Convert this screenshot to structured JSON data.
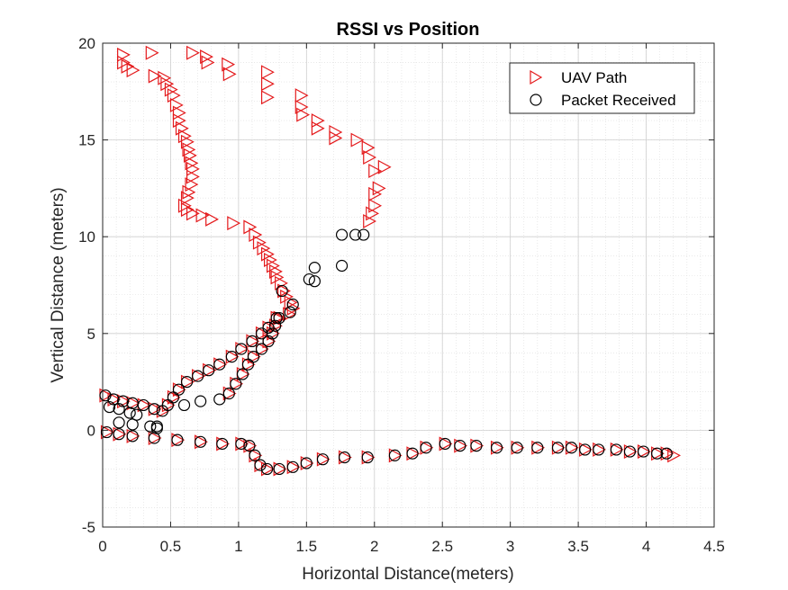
{
  "chart_data": {
    "type": "scatter",
    "title": "RSSI vs Position",
    "xlabel": "Horizontal Distance(meters)",
    "ylabel": "Vertical Distance (meters)",
    "xlim": [
      0,
      4.5
    ],
    "ylim": [
      -5,
      20
    ],
    "xticks": [
      0,
      0.5,
      1,
      1.5,
      2,
      2.5,
      3,
      3.5,
      4,
      4.5
    ],
    "xtick_labels": [
      "0",
      "0.5",
      "1",
      "1.5",
      "2",
      "2.5",
      "3",
      "3.5",
      "4",
      "4.5"
    ],
    "yticks": [
      -5,
      0,
      5,
      10,
      15,
      20
    ],
    "ytick_labels": [
      "-5",
      "0",
      "5",
      "10",
      "15",
      "20"
    ],
    "grid": true,
    "minor_grid": true,
    "legend_position": "top-right",
    "series": [
      {
        "name": "UAV Path",
        "marker": "triangle-right",
        "color": "#e41a1c",
        "points": [
          [
            0.15,
            19.4
          ],
          [
            0.15,
            19.0
          ],
          [
            0.18,
            18.8
          ],
          [
            0.22,
            18.6
          ],
          [
            0.36,
            19.5
          ],
          [
            0.66,
            19.5
          ],
          [
            0.76,
            19.3
          ],
          [
            0.77,
            19.0
          ],
          [
            0.92,
            18.9
          ],
          [
            0.93,
            18.4
          ],
          [
            0.38,
            18.3
          ],
          [
            0.45,
            18.2
          ],
          [
            0.47,
            17.9
          ],
          [
            0.5,
            17.6
          ],
          [
            0.52,
            17.3
          ],
          [
            0.54,
            16.8
          ],
          [
            0.56,
            16.4
          ],
          [
            0.56,
            16.0
          ],
          [
            0.58,
            15.6
          ],
          [
            0.6,
            15.2
          ],
          [
            0.62,
            14.9
          ],
          [
            0.63,
            14.5
          ],
          [
            0.64,
            14.2
          ],
          [
            0.65,
            13.8
          ],
          [
            0.66,
            13.5
          ],
          [
            0.66,
            13.1
          ],
          [
            0.65,
            12.7
          ],
          [
            0.63,
            12.3
          ],
          [
            0.62,
            12.0
          ],
          [
            0.6,
            11.6
          ],
          [
            0.62,
            11.4
          ],
          [
            0.66,
            11.2
          ],
          [
            0.73,
            11.1
          ],
          [
            0.8,
            10.9
          ],
          [
            0.96,
            10.7
          ],
          [
            1.08,
            10.5
          ],
          [
            1.12,
            10.1
          ],
          [
            1.15,
            9.7
          ],
          [
            1.18,
            9.4
          ],
          [
            1.21,
            9.1
          ],
          [
            1.23,
            8.8
          ],
          [
            1.25,
            8.5
          ],
          [
            1.27,
            8.2
          ],
          [
            1.28,
            7.9
          ],
          [
            1.31,
            7.6
          ],
          [
            1.33,
            7.2
          ],
          [
            1.35,
            6.9
          ],
          [
            1.38,
            6.6
          ],
          [
            1.4,
            6.3
          ],
          [
            1.37,
            6.0
          ],
          [
            1.3,
            5.8
          ],
          [
            1.27,
            5.4
          ],
          [
            1.25,
            5.0
          ],
          [
            1.22,
            4.6
          ],
          [
            1.17,
            4.2
          ],
          [
            1.11,
            3.8
          ],
          [
            1.07,
            3.4
          ],
          [
            1.03,
            2.9
          ],
          [
            0.98,
            2.4
          ],
          [
            0.93,
            1.9
          ],
          [
            1.21,
            18.5
          ],
          [
            1.21,
            17.9
          ],
          [
            1.21,
            17.2
          ],
          [
            1.46,
            17.3
          ],
          [
            1.46,
            16.7
          ],
          [
            1.47,
            16.3
          ],
          [
            1.58,
            16.0
          ],
          [
            1.58,
            15.6
          ],
          [
            1.71,
            15.4
          ],
          [
            1.71,
            15.1
          ],
          [
            1.87,
            15.0
          ],
          [
            1.95,
            14.6
          ],
          [
            1.96,
            14.1
          ],
          [
            2.07,
            13.6
          ],
          [
            2.0,
            13.4
          ],
          [
            2.03,
            12.5
          ],
          [
            2.0,
            12.2
          ],
          [
            2.0,
            11.6
          ],
          [
            1.98,
            11.2
          ],
          [
            1.96,
            10.8
          ],
          [
            0.02,
            1.8
          ],
          [
            0.08,
            1.6
          ],
          [
            0.15,
            1.5
          ],
          [
            0.22,
            1.4
          ],
          [
            0.3,
            1.3
          ],
          [
            0.38,
            1.1
          ],
          [
            0.44,
            1.0
          ],
          [
            0.48,
            1.3
          ],
          [
            0.52,
            1.7
          ],
          [
            0.56,
            2.1
          ],
          [
            0.62,
            2.5
          ],
          [
            0.7,
            2.8
          ],
          [
            0.78,
            3.1
          ],
          [
            0.86,
            3.4
          ],
          [
            0.95,
            3.8
          ],
          [
            1.02,
            4.2
          ],
          [
            1.1,
            4.6
          ],
          [
            1.17,
            5.0
          ],
          [
            1.22,
            5.3
          ],
          [
            1.28,
            5.8
          ],
          [
            0.03,
            -0.1
          ],
          [
            0.12,
            -0.2
          ],
          [
            0.22,
            -0.3
          ],
          [
            0.38,
            -0.4
          ],
          [
            0.55,
            -0.5
          ],
          [
            0.72,
            -0.6
          ],
          [
            0.88,
            -0.7
          ],
          [
            1.02,
            -0.7
          ],
          [
            1.08,
            -0.8
          ],
          [
            1.12,
            -1.3
          ],
          [
            1.16,
            -1.8
          ],
          [
            1.21,
            -2.0
          ],
          [
            1.3,
            -2.0
          ],
          [
            1.4,
            -1.9
          ],
          [
            1.5,
            -1.7
          ],
          [
            1.62,
            -1.5
          ],
          [
            1.78,
            -1.4
          ],
          [
            1.95,
            -1.4
          ],
          [
            2.15,
            -1.3
          ],
          [
            2.28,
            -1.2
          ],
          [
            2.38,
            -0.9
          ],
          [
            2.52,
            -0.7
          ],
          [
            2.63,
            -0.8
          ],
          [
            2.75,
            -0.8
          ],
          [
            2.9,
            -0.9
          ],
          [
            3.05,
            -0.9
          ],
          [
            3.2,
            -0.9
          ],
          [
            3.35,
            -0.9
          ],
          [
            3.45,
            -0.9
          ],
          [
            3.55,
            -1.0
          ],
          [
            3.65,
            -1.0
          ],
          [
            3.78,
            -1.0
          ],
          [
            3.88,
            -1.1
          ],
          [
            3.98,
            -1.1
          ],
          [
            4.08,
            -1.2
          ],
          [
            4.15,
            -1.2
          ],
          [
            4.2,
            -1.3
          ]
        ]
      },
      {
        "name": "Packet Received",
        "marker": "circle",
        "color": "#000000",
        "points": [
          [
            1.76,
            10.1
          ],
          [
            1.86,
            10.1
          ],
          [
            1.92,
            10.1
          ],
          [
            1.76,
            8.5
          ],
          [
            1.56,
            8.4
          ],
          [
            1.52,
            7.8
          ],
          [
            1.56,
            7.7
          ],
          [
            1.4,
            6.5
          ],
          [
            1.38,
            6.1
          ],
          [
            1.32,
            7.2
          ],
          [
            1.3,
            5.8
          ],
          [
            1.27,
            5.4
          ],
          [
            1.25,
            5.0
          ],
          [
            1.22,
            4.6
          ],
          [
            1.17,
            4.2
          ],
          [
            1.11,
            3.8
          ],
          [
            1.07,
            3.4
          ],
          [
            1.03,
            2.9
          ],
          [
            0.98,
            2.4
          ],
          [
            0.93,
            1.9
          ],
          [
            0.86,
            1.6
          ],
          [
            0.72,
            1.5
          ],
          [
            0.6,
            1.3
          ],
          [
            0.02,
            1.8
          ],
          [
            0.08,
            1.6
          ],
          [
            0.15,
            1.5
          ],
          [
            0.22,
            1.4
          ],
          [
            0.3,
            1.3
          ],
          [
            0.38,
            1.1
          ],
          [
            0.44,
            1.0
          ],
          [
            0.48,
            1.3
          ],
          [
            0.52,
            1.7
          ],
          [
            0.56,
            2.1
          ],
          [
            0.62,
            2.5
          ],
          [
            0.7,
            2.8
          ],
          [
            0.78,
            3.1
          ],
          [
            0.86,
            3.4
          ],
          [
            0.95,
            3.8
          ],
          [
            1.02,
            4.2
          ],
          [
            1.1,
            4.6
          ],
          [
            1.17,
            5.0
          ],
          [
            1.22,
            5.3
          ],
          [
            1.28,
            5.8
          ],
          [
            0.05,
            1.2
          ],
          [
            0.12,
            1.1
          ],
          [
            0.2,
            0.9
          ],
          [
            0.25,
            0.8
          ],
          [
            0.12,
            0.4
          ],
          [
            0.22,
            0.3
          ],
          [
            0.35,
            0.2
          ],
          [
            0.4,
            0.1
          ],
          [
            0.4,
            0.2
          ],
          [
            0.03,
            -0.1
          ],
          [
            0.12,
            -0.2
          ],
          [
            0.22,
            -0.3
          ],
          [
            0.38,
            -0.4
          ],
          [
            0.55,
            -0.5
          ],
          [
            0.72,
            -0.6
          ],
          [
            0.88,
            -0.7
          ],
          [
            1.02,
            -0.7
          ],
          [
            1.08,
            -0.8
          ],
          [
            1.12,
            -1.3
          ],
          [
            1.16,
            -1.8
          ],
          [
            1.21,
            -2.0
          ],
          [
            1.3,
            -2.0
          ],
          [
            1.4,
            -1.9
          ],
          [
            1.5,
            -1.7
          ],
          [
            1.62,
            -1.5
          ],
          [
            1.78,
            -1.4
          ],
          [
            1.95,
            -1.4
          ],
          [
            2.15,
            -1.3
          ],
          [
            2.28,
            -1.2
          ],
          [
            2.38,
            -0.9
          ],
          [
            2.52,
            -0.7
          ],
          [
            2.63,
            -0.8
          ],
          [
            2.75,
            -0.8
          ],
          [
            2.9,
            -0.9
          ],
          [
            3.05,
            -0.9
          ],
          [
            3.2,
            -0.9
          ],
          [
            3.35,
            -0.9
          ],
          [
            3.45,
            -0.9
          ],
          [
            3.55,
            -1.0
          ],
          [
            3.65,
            -1.0
          ],
          [
            3.78,
            -1.0
          ],
          [
            3.88,
            -1.1
          ],
          [
            3.98,
            -1.1
          ],
          [
            4.08,
            -1.2
          ],
          [
            4.15,
            -1.2
          ]
        ]
      }
    ]
  }
}
